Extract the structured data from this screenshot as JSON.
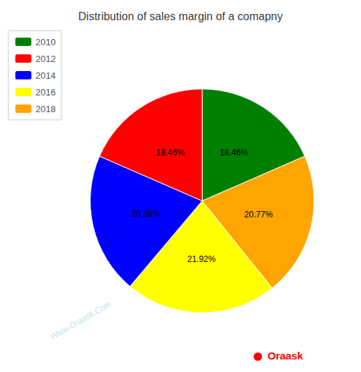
{
  "chart_data": {
    "type": "pie",
    "title": "Distribution of sales margin of a comapny",
    "categories": [
      "2010",
      "2018",
      "2016",
      "2014",
      "2012"
    ],
    "values": [
      18.46,
      20.77,
      21.92,
      20.38,
      18.46
    ],
    "value_labels": [
      "18.46%",
      "20.77%",
      "21.92%",
      "20.38%",
      "18.46%"
    ],
    "colors": [
      "#008000",
      "#ffa500",
      "#ffff00",
      "#0000ff",
      "#ff0000"
    ],
    "data_labels": true,
    "legend": "upper left",
    "annotations": [
      "Www.Oraask.Com",
      "Oraask"
    ]
  }
}
